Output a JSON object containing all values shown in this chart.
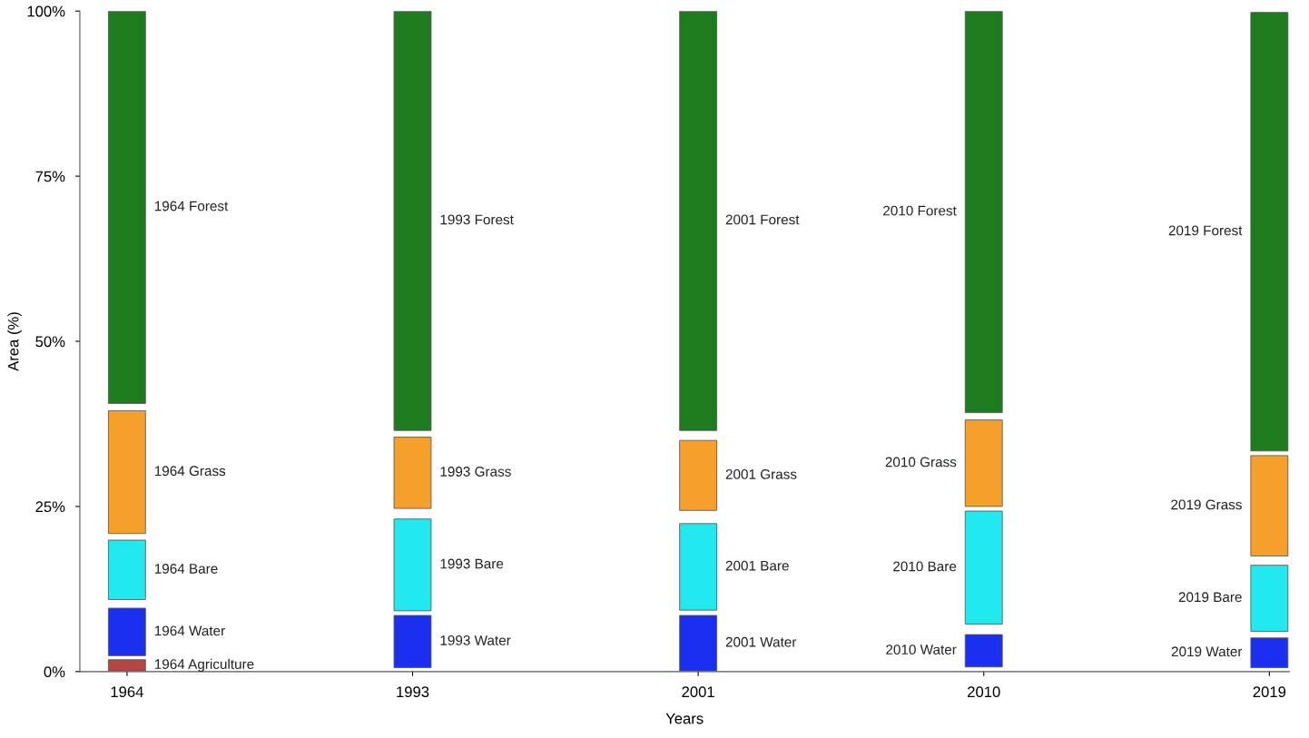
{
  "chart_data": {
    "type": "bar",
    "xlabel": "Years",
    "ylabel": "Area (%)",
    "categories": [
      "1964",
      "1993",
      "2001",
      "2010",
      "2019"
    ],
    "series": [
      {
        "color": "#1e7b1e",
        "base": [
          40.6,
          36.5,
          36.5,
          39.2,
          33.4
        ],
        "values": [
          59.4,
          63.5,
          63.5,
          60.8,
          66.4
        ]
      },
      {
        "color": "#f5a02a",
        "base": [
          20.9,
          24.7,
          24.4,
          25.0,
          17.5
        ],
        "values": [
          18.6,
          10.8,
          10.6,
          13.1,
          15.2
        ]
      },
      {
        "color": "#22e8f0",
        "base": [
          10.9,
          9.2,
          9.3,
          7.2,
          6.1
        ],
        "values": [
          9.0,
          13.9,
          13.1,
          17.1,
          10.0
        ]
      },
      {
        "color": "#1b2ff0",
        "base": [
          2.4,
          0.6,
          0.1,
          0.7,
          0.6
        ],
        "values": [
          7.2,
          7.9,
          8.4,
          4.9,
          4.5
        ]
      },
      {
        "color": "#b84545",
        "base": [
          0.1,
          null,
          null,
          null,
          null
        ],
        "values": [
          1.7,
          null,
          null,
          null,
          null
        ]
      }
    ],
    "ylim": [
      0,
      100
    ],
    "yticks": [
      {
        "value": 0,
        "label": "0%"
      },
      {
        "value": 25,
        "label": "25%"
      },
      {
        "value": 50,
        "label": "50%"
      },
      {
        "value": 75,
        "label": "75%"
      },
      {
        "value": 100,
        "label": "100%"
      }
    ],
    "grid": false,
    "legend": false,
    "annotations": [
      "1964 Forest",
      "1964 Grass",
      "1964 Bare",
      "1964 Water",
      "1964 Agriculture",
      "1993 Forest",
      "1993 Grass",
      "1993 Bare",
      "1993 Water",
      "2001 Forest",
      "2001 Grass",
      "2001 Bare",
      "2001 Water",
      "2010 Forest",
      "2010 Grass",
      "2010 Bare",
      "2010 Water",
      "2019 Forest",
      "2019 Grass",
      "2019 Bare",
      "2019 Water"
    ]
  }
}
